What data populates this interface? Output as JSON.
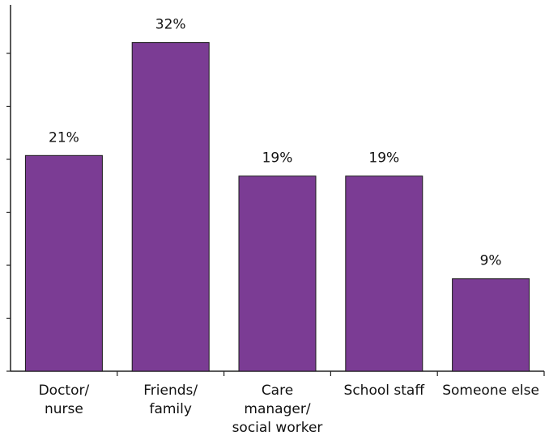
{
  "chart_data": {
    "type": "bar",
    "categories": [
      "Doctor/\nnurse",
      "Friends/\nfamily",
      "Care\nmanager/\nsocial worker",
      "School staff",
      "Someone else"
    ],
    "values": [
      21,
      32,
      19,
      19,
      9
    ],
    "value_labels": [
      "21%",
      "32%",
      "19%",
      "19%",
      "9%"
    ],
    "title": "",
    "xlabel": "",
    "ylabel": "",
    "ylim": [
      0,
      35
    ],
    "bar_color": "#7b3c94",
    "grid": false,
    "legend": "none"
  }
}
